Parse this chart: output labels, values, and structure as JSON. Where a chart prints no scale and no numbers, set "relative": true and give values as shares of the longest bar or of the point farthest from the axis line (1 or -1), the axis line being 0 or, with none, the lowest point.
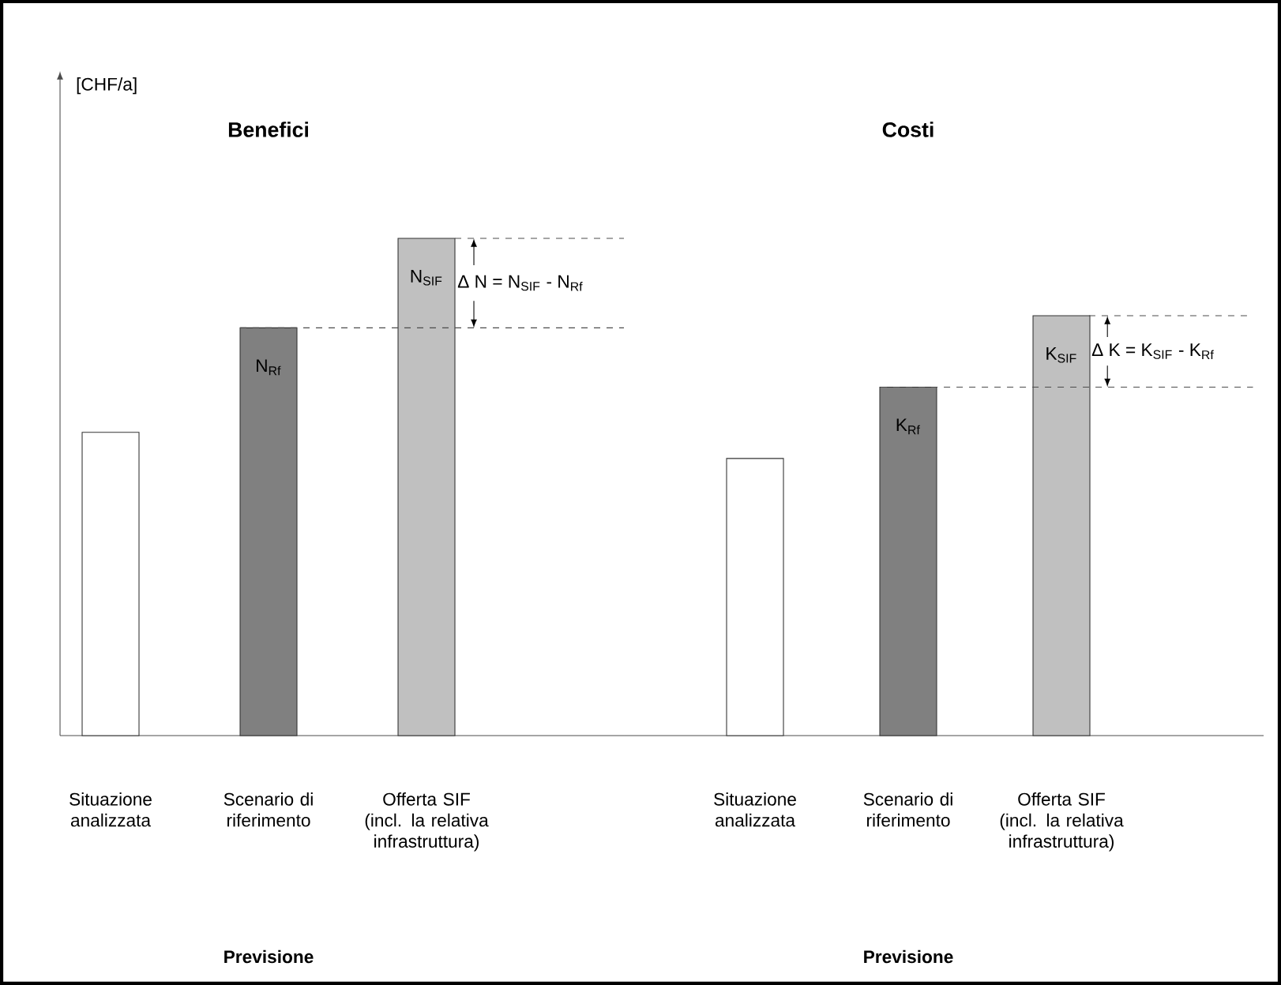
{
  "chart_data": [
    {
      "type": "bar",
      "title": "Benefici",
      "ylabel": "[CHF/a]",
      "relative": true,
      "categories": [
        "Situazione analizzata",
        "Scenario di riferimento",
        "Offerta SIF (incl. la relativa infrastruttura)"
      ],
      "values": [
        0.61,
        0.82,
        1.0
      ],
      "colors": [
        "#ffffff",
        "#808080",
        "#c0c0c0"
      ],
      "ref_lines": [
        {
          "axis": "y",
          "value": 0.82,
          "line_style": "dashed"
        },
        {
          "axis": "y",
          "value": 1.0,
          "line_style": "dashed"
        }
      ],
      "annotations": [
        {
          "text": "N$_{Rf}$",
          "x": "Scenario di riferimento",
          "y": 0.82
        },
        {
          "text": "N$_{SIF}$",
          "x": "Offerta SIF (incl. la relativa infrastruttura)",
          "y": 1.0
        },
        "Δ N = N$_{SIF}$ - N$_{Rf}$",
        "Previsione"
      ]
    },
    {
      "type": "bar",
      "title": "Costi",
      "relative": true,
      "categories": [
        "Situazione analizzata",
        "Scenario di riferimento",
        "Offerta SIF (incl. la relativa infrastruttura)"
      ],
      "values": [
        0.66,
        0.83,
        1.0
      ],
      "colors": [
        "#ffffff",
        "#808080",
        "#c0c0c0"
      ],
      "ref_lines": [
        {
          "axis": "y",
          "value": 0.83,
          "line_style": "dashed"
        },
        {
          "axis": "y",
          "value": 1.0,
          "line_style": "dashed"
        }
      ],
      "annotations": [
        {
          "text": "K$_{Rf}$",
          "x": "Scenario di riferimento",
          "y": 0.83
        },
        {
          "text": "K$_{SIF}$",
          "x": "Offerta SIF (incl. la relativa infrastruttura)",
          "y": 1.0
        },
        "Δ K = K$_{SIF}$ - K$_{Rf}$",
        "Previsione"
      ]
    }
  ]
}
